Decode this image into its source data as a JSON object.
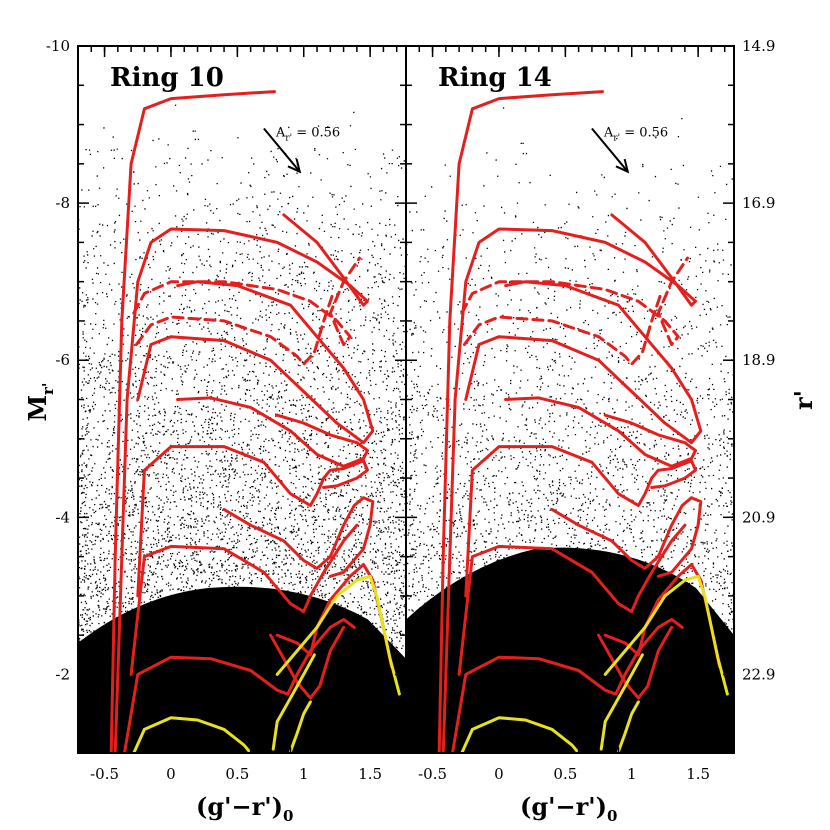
{
  "chart_data": {
    "type": "scatter",
    "x_axis": {
      "label": "(g'−r')",
      "label_subscript": "0",
      "range": [
        -0.7,
        1.77
      ],
      "ticks": [
        -0.5,
        0,
        0.5,
        1,
        1.5
      ],
      "tick_labels": [
        "-0.5",
        "0",
        "0.5",
        "1",
        "1.5"
      ]
    },
    "left_y_axis": {
      "label": "M",
      "label_subscript": "r'",
      "range": [
        -10,
        -1
      ],
      "ticks": [
        -10,
        -8,
        -6,
        -4,
        -2
      ],
      "tick_labels": [
        "-10",
        "-8",
        "-6",
        "-4",
        "-2"
      ],
      "inverted": true
    },
    "right_y_axis": {
      "label": "r'",
      "ticks": [
        14.9,
        16.9,
        18.9,
        20.9,
        22.9
      ],
      "tick_labels": [
        "14.9",
        "16.9",
        "18.9",
        "20.9",
        "22.9"
      ],
      "inverted": true
    },
    "reddening_vector": {
      "label": "A",
      "label_subscript": "r'",
      "value_text": "= 0.56",
      "from": [
        0.7,
        -8.95
      ],
      "to": [
        0.97,
        -8.4
      ]
    },
    "panels": [
      {
        "title": "Ring 10",
        "density_level": 0
      },
      {
        "title": "Ring 14",
        "density_level": 1
      }
    ],
    "isochrones": [
      {
        "color": "#e4201e",
        "style": "solid",
        "points": [
          [
            -0.45,
            -1
          ],
          [
            -0.42,
            -3.5
          ],
          [
            -0.37,
            -6.5
          ],
          [
            -0.3,
            -8.5
          ],
          [
            -0.2,
            -9.2
          ],
          [
            0,
            -9.33
          ],
          [
            0.4,
            -9.38
          ],
          [
            0.78,
            -9.42
          ]
        ]
      },
      {
        "color": "#e4201e",
        "style": "solid",
        "points": [
          [
            -0.42,
            -1
          ],
          [
            -0.38,
            -3
          ],
          [
            -0.33,
            -5.5
          ],
          [
            -0.25,
            -7
          ],
          [
            -0.15,
            -7.5
          ],
          [
            0,
            -7.67
          ],
          [
            0.4,
            -7.65
          ],
          [
            0.8,
            -7.5
          ],
          [
            1.1,
            -7.25
          ],
          [
            1.35,
            -6.95
          ],
          [
            1.48,
            -6.75
          ],
          [
            1.45,
            -6.7
          ],
          [
            1.3,
            -7.05
          ],
          [
            1.1,
            -7.5
          ],
          [
            0.85,
            -7.85
          ]
        ]
      },
      {
        "color": "#e4201e",
        "style": "dashed",
        "points": [
          [
            -0.28,
            -6.6
          ],
          [
            -0.2,
            -6.85
          ],
          [
            0,
            -7.0
          ],
          [
            0.4,
            -7.0
          ],
          [
            0.8,
            -6.9
          ],
          [
            1.05,
            -6.75
          ],
          [
            1.25,
            -6.5
          ],
          [
            1.35,
            -6.3
          ],
          [
            1.3,
            -6.2
          ],
          [
            1.2,
            -6.6
          ],
          [
            1.3,
            -7.0
          ],
          [
            1.42,
            -7.3
          ]
        ]
      },
      {
        "color": "#e4201e",
        "style": "dashed",
        "points": [
          [
            -0.26,
            -6.2
          ],
          [
            -0.15,
            -6.45
          ],
          [
            0,
            -6.55
          ],
          [
            0.4,
            -6.5
          ],
          [
            0.75,
            -6.3
          ],
          [
            0.95,
            -6.05
          ],
          [
            1.0,
            -5.95
          ],
          [
            1.08,
            -6.1
          ],
          [
            1.15,
            -6.5
          ],
          [
            1.22,
            -6.85
          ]
        ]
      },
      {
        "color": "#e4201e",
        "style": "solid",
        "points": [
          [
            -0.25,
            -5.5
          ],
          [
            -0.15,
            -6.2
          ],
          [
            0,
            -6.3
          ],
          [
            0.4,
            -6.25
          ],
          [
            0.75,
            -6.0
          ],
          [
            1.0,
            -5.6
          ],
          [
            1.25,
            -5.2
          ],
          [
            1.45,
            -4.95
          ],
          [
            1.52,
            -5.1
          ],
          [
            1.45,
            -5.5
          ],
          [
            1.3,
            -5.9
          ],
          [
            1.1,
            -6.3
          ],
          [
            0.9,
            -6.7
          ],
          [
            0.5,
            -6.95
          ],
          [
            0.2,
            -7.0
          ],
          [
            0.05,
            -6.95
          ]
        ]
      },
      {
        "color": "#e4201e",
        "style": "solid",
        "points": [
          [
            0.05,
            -5.5
          ],
          [
            0.3,
            -5.52
          ],
          [
            0.6,
            -5.4
          ],
          [
            0.9,
            -5.1
          ],
          [
            1.1,
            -4.8
          ],
          [
            1.3,
            -4.65
          ],
          [
            1.45,
            -4.75
          ],
          [
            1.48,
            -4.85
          ],
          [
            1.4,
            -4.95
          ],
          [
            1.2,
            -5.05
          ],
          [
            1.0,
            -5.2
          ],
          [
            0.8,
            -5.3
          ]
        ]
      },
      {
        "color": "#e4201e",
        "style": "solid",
        "points": [
          [
            -0.25,
            -3
          ],
          [
            -0.2,
            -4.6
          ],
          [
            0,
            -4.9
          ],
          [
            0.4,
            -4.9
          ],
          [
            0.7,
            -4.7
          ],
          [
            0.9,
            -4.3
          ],
          [
            1.05,
            -4.15
          ],
          [
            1.1,
            -4.3
          ],
          [
            1.15,
            -4.5
          ],
          [
            1.2,
            -4.6
          ],
          [
            1.3,
            -4.62
          ],
          [
            1.45,
            -4.72
          ],
          [
            1.48,
            -4.6
          ],
          [
            1.4,
            -4.5
          ],
          [
            1.25,
            -4.4
          ],
          [
            1.15,
            -4.38
          ]
        ]
      },
      {
        "color": "#e4201e",
        "style": "solid",
        "points": [
          [
            0.4,
            -4.1
          ],
          [
            0.6,
            -3.9
          ],
          [
            0.85,
            -3.7
          ],
          [
            1.0,
            -3.45
          ],
          [
            1.1,
            -3.35
          ],
          [
            1.2,
            -3.5
          ],
          [
            1.3,
            -3.9
          ],
          [
            1.38,
            -4.15
          ],
          [
            1.45,
            -4.25
          ],
          [
            1.52,
            -4.2
          ],
          [
            1.5,
            -3.9
          ],
          [
            1.45,
            -3.6
          ],
          [
            1.3,
            -3.3
          ],
          [
            1.2,
            -3.25
          ]
        ]
      },
      {
        "color": "#e4201e",
        "style": "solid",
        "points": [
          [
            -0.3,
            -2
          ],
          [
            -0.2,
            -3.5
          ],
          [
            0,
            -3.63
          ],
          [
            0.4,
            -3.6
          ],
          [
            0.7,
            -3.3
          ],
          [
            0.9,
            -2.9
          ],
          [
            1.0,
            -2.8
          ],
          [
            1.05,
            -3.0
          ],
          [
            1.15,
            -3.3
          ],
          [
            1.3,
            -3.7
          ],
          [
            1.4,
            -3.9
          ]
        ]
      },
      {
        "color": "#e4201e",
        "style": "solid",
        "points": [
          [
            0.8,
            -2.5
          ],
          [
            0.95,
            -2.4
          ],
          [
            1.05,
            -2.25
          ],
          [
            1.1,
            -2.6
          ],
          [
            1.2,
            -2.95
          ],
          [
            1.35,
            -3.25
          ],
          [
            1.45,
            -3.4
          ],
          [
            1.52,
            -3.2
          ],
          [
            1.6,
            -2.6
          ],
          [
            1.66,
            -2.1
          ]
        ]
      },
      {
        "color": "#e4201e",
        "style": "solid",
        "points": [
          [
            -0.35,
            -1
          ],
          [
            -0.25,
            -2
          ],
          [
            0,
            -2.22
          ],
          [
            0.3,
            -2.2
          ],
          [
            0.6,
            -2.05
          ],
          [
            0.8,
            -1.8
          ],
          [
            0.88,
            -1.75
          ],
          [
            0.95,
            -2.0
          ],
          [
            1.05,
            -2.3
          ],
          [
            1.2,
            -2.6
          ],
          [
            1.3,
            -2.7
          ],
          [
            1.38,
            -2.6
          ]
        ]
      },
      {
        "color": "#e4201e",
        "style": "solid",
        "points": [
          [
            0.75,
            -2.5
          ],
          [
            0.85,
            -2.2
          ],
          [
            0.95,
            -1.9
          ],
          [
            1.05,
            -1.7
          ],
          [
            1.12,
            -1.85
          ],
          [
            1.2,
            -2.3
          ],
          [
            1.3,
            -2.6
          ]
        ]
      },
      {
        "color": "#e8e21e",
        "style": "solid",
        "points": [
          [
            0.8,
            -2.0
          ],
          [
            0.95,
            -2.3
          ],
          [
            1.1,
            -2.6
          ],
          [
            1.25,
            -3.0
          ],
          [
            1.4,
            -3.2
          ],
          [
            1.5,
            -3.25
          ],
          [
            1.55,
            -3.0
          ],
          [
            1.6,
            -2.6
          ],
          [
            1.65,
            -2.2
          ],
          [
            1.72,
            -1.75
          ]
        ]
      },
      {
        "color": "#e8e21e",
        "style": "solid",
        "points": [
          [
            0.77,
            -1.05
          ],
          [
            0.8,
            -1.4
          ],
          [
            0.9,
            -1.7
          ],
          [
            1.0,
            -2.0
          ],
          [
            1.08,
            -2.25
          ]
        ]
      },
      {
        "color": "#e8e21e",
        "style": "solid",
        "points": [
          [
            -0.28,
            -1
          ],
          [
            -0.2,
            -1.3
          ],
          [
            0,
            -1.45
          ],
          [
            0.2,
            -1.42
          ],
          [
            0.4,
            -1.3
          ],
          [
            0.55,
            -1.1
          ],
          [
            0.6,
            -1.0
          ]
        ]
      },
      {
        "color": "#e8e21e",
        "style": "solid",
        "points": [
          [
            0.9,
            -1.02
          ],
          [
            0.95,
            -1.25
          ],
          [
            1.0,
            -1.5
          ],
          [
            1.05,
            -1.65
          ]
        ]
      }
    ]
  }
}
